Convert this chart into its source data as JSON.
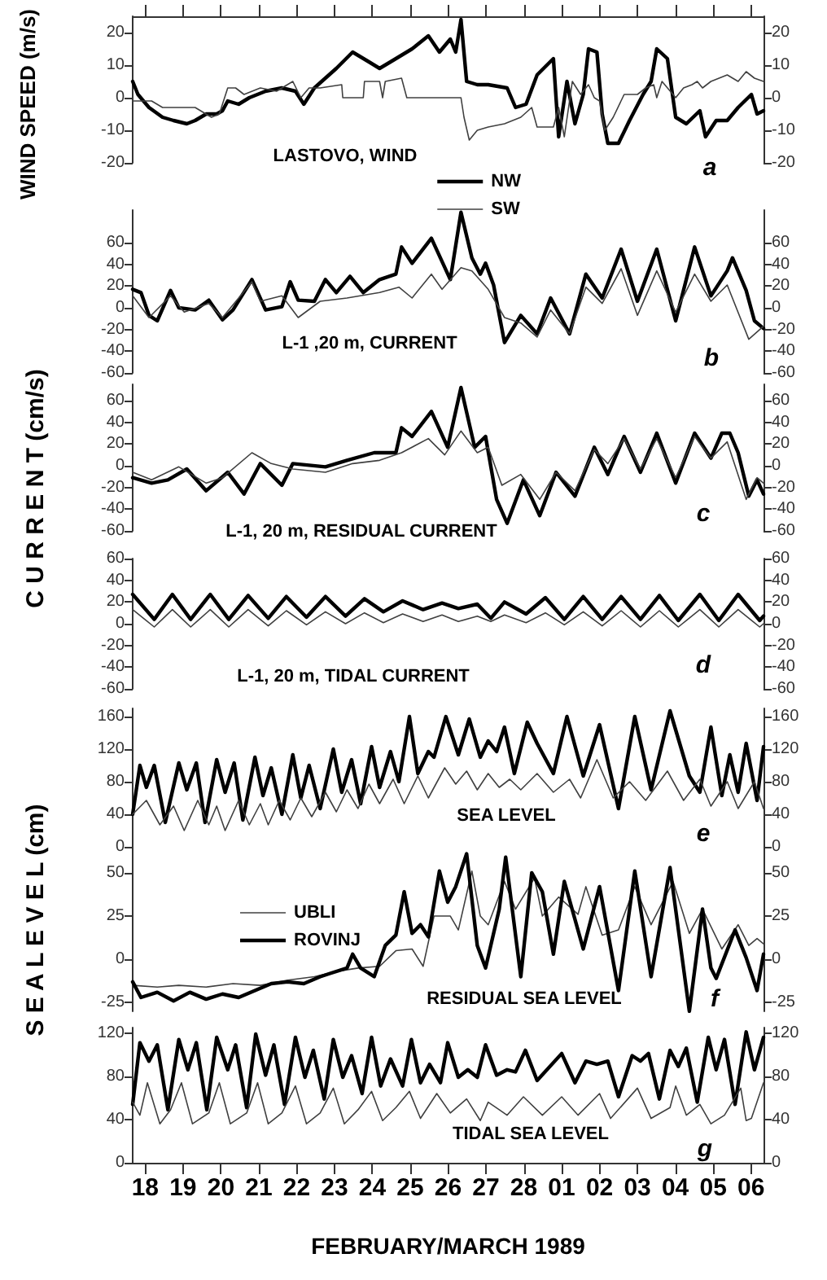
{
  "chart_data": [
    {
      "type": "line",
      "title": "LASTOVO, WIND",
      "annotations": [
        "a"
      ],
      "ylabel": "WIND SPEED  (m/s)",
      "legend": "bottom",
      "marker": "none",
      "tick_labels": "y",
      "xlim": [
        "1989-02-17T16:05",
        "1989-03-06T07:55"
      ],
      "xticks": [
        {
          "value": "1989-02-18",
          "label": null
        },
        {
          "value": "1989-02-19",
          "label": null
        },
        {
          "value": "1989-02-20",
          "label": null
        },
        {
          "value": "1989-02-21",
          "label": null
        },
        {
          "value": "1989-02-22",
          "label": null
        },
        {
          "value": "1989-02-23",
          "label": null
        },
        {
          "value": "1989-02-24",
          "label": null
        },
        {
          "value": "1989-02-25",
          "label": null
        },
        {
          "value": "1989-02-26",
          "label": null
        },
        {
          "value": "1989-02-27",
          "label": null
        },
        {
          "value": "1989-02-28",
          "label": null
        },
        {
          "value": "1989-03-01",
          "label": null
        },
        {
          "value": "1989-03-02",
          "label": null
        },
        {
          "value": "1989-03-03",
          "label": null
        },
        {
          "value": "1989-03-04",
          "label": null
        },
        {
          "value": "1989-03-05",
          "label": null
        },
        {
          "value": "1989-03-06",
          "label": null
        }
      ],
      "ylim": [
        -20,
        25
      ],
      "yticks": [
        -20,
        -10,
        0,
        10,
        20
      ],
      "y2lim": [
        -20,
        25
      ],
      "y2ticks": [
        -20,
        -10,
        0,
        10,
        20
      ],
      "series": [
        {
          "name": "NW",
          "color": "#000000",
          "x": [
            "1989-02-17T16:05",
            "1989-02-17T19:25",
            "1989-02-18T02:25",
            "1989-02-18T11:00",
            "1989-02-18T18:00",
            "1989-02-19T02:25",
            "1989-02-19T07:40",
            "1989-02-19T14:40",
            "1989-02-19T21:20",
            "1989-02-20T01:00",
            "1989-02-20T04:20",
            "1989-02-20T11:15",
            "1989-02-20T18:00",
            "1989-02-21T04:20",
            "1989-02-21T14:40",
            "1989-02-21T23:15",
            "1989-02-22T04:35",
            "1989-02-22T11:15",
            "1989-02-23T01:10",
            "1989-02-23T11:30",
            "1989-02-23T21:50",
            "1989-02-24T04:35",
            "1989-02-24T11:30",
            "1989-02-25T01:10",
            "1989-02-25T11:30",
            "1989-02-25T18:30",
            "1989-02-26T01:25",
            "1989-02-26T04:50",
            "1989-02-26T08:10",
            "1989-02-26T11:45",
            "1989-02-26T18:30",
            "1989-02-27T01:25",
            "1989-02-27T13:25",
            "1989-02-27T18:45",
            "1989-02-28T01:25",
            "1989-02-28T08:25",
            "1989-02-28T18:45",
            "1989-02-28T22:05",
            "1989-03-01T03:20",
            "1989-03-01T08:25",
            "1989-03-01T13:40",
            "1989-03-01T17:00",
            "1989-03-01T22:20",
            "1989-03-02T01:40",
            "1989-03-02T05:15",
            "1989-03-02T12:00",
            "1989-03-02T19:00",
            "1989-03-03T03:35",
            "1989-03-03T08:40",
            "1989-03-03T12:15",
            "1989-03-03T19:00",
            "1989-03-04T00:15",
            "1989-03-04T07:00",
            "1989-03-04T15:35",
            "1989-03-04T19:10",
            "1989-03-05T01:55",
            "1989-03-05T08:55",
            "1989-03-05T15:50",
            "1989-03-06T00:15",
            "1989-03-06T03:50",
            "1989-03-06T07:55"
          ],
          "values": [
            5,
            1,
            -3,
            -6,
            -7,
            -8,
            -7,
            -5,
            -5,
            -4,
            -1,
            -2,
            0,
            2,
            3,
            2,
            -2,
            3,
            9,
            14,
            11,
            9,
            11,
            15,
            19,
            14,
            18,
            14,
            24,
            5,
            4,
            4,
            3,
            -3,
            -2,
            7,
            12,
            -12,
            5,
            -8,
            1,
            15,
            14,
            -5,
            -14,
            -14,
            -7,
            1,
            5,
            15,
            12,
            -6,
            -8,
            -4,
            -12,
            -7,
            -7,
            -3,
            1,
            -5,
            -4
          ]
        },
        {
          "name": "SW",
          "color": "#404040",
          "x": [
            "1989-02-17T16:05",
            "1989-02-17T21:20",
            "1989-02-18T04:05",
            "1989-02-18T11:00",
            "1989-02-18T21:20",
            "1989-02-19T07:40",
            "1989-02-19T18:00",
            "1989-02-19T23:00",
            "1989-02-20T04:20",
            "1989-02-20T09:20",
            "1989-02-20T14:40",
            "1989-02-21T01:00",
            "1989-02-21T11:15",
            "1989-02-21T21:35",
            "1989-02-22T02:40",
            "1989-02-22T07:55",
            "1989-02-22T14:55",
            "1989-02-23T04:35",
            "1989-02-23T05:15",
            "1989-02-23T18:15",
            "1989-02-23T19:00",
            "1989-02-24T04:35",
            "1989-02-24T06:30",
            "1989-02-24T08:10",
            "1989-02-24T18:30",
            "1989-02-24T21:50",
            "1989-02-26T08:10",
            "1989-02-26T10:05",
            "1989-02-26T13:25",
            "1989-02-26T18:30",
            "1989-02-27T01:25",
            "1989-02-27T11:45",
            "1989-02-27T22:05",
            "1989-02-28T05:00",
            "1989-02-28T08:25",
            "1989-02-28T18:45",
            "1989-02-28T22:05",
            "1989-03-01T01:40",
            "1989-03-01T06:45",
            "1989-03-01T12:00",
            "1989-03-01T17:00",
            "1989-03-01T20:40",
            "1989-03-02T00:00",
            "1989-03-02T03:20",
            "1989-03-02T08:40",
            "1989-03-02T15:35",
            "1989-03-03T00:00",
            "1989-03-03T05:15",
            "1989-03-03T10:20",
            "1989-03-03T12:15",
            "1989-03-03T15:35",
            "1989-03-04T00:15",
            "1989-03-04T05:15",
            "1989-03-04T10:35",
            "1989-03-04T13:55",
            "1989-03-04T17:15",
            "1989-03-04T22:35",
            "1989-03-05T08:55",
            "1989-03-05T15:50",
            "1989-03-05T20:55",
            "1989-03-06T02:10",
            "1989-03-06T07:55"
          ],
          "values": [
            -1,
            -1,
            -1,
            -3,
            -3,
            -3,
            -6,
            -5,
            3,
            3,
            1,
            3,
            2,
            5,
            0,
            3,
            3,
            4,
            0,
            0,
            5,
            5,
            0,
            5,
            6,
            0,
            0,
            -6,
            -13,
            -10,
            -9,
            -8,
            -6,
            -3,
            -9,
            -9,
            -3,
            -12,
            5,
            1,
            4,
            0,
            -1,
            -10,
            -6,
            1,
            1,
            3,
            4,
            0,
            5,
            0,
            3,
            4,
            5,
            3,
            5,
            7,
            5,
            8,
            6,
            5
          ]
        }
      ]
    },
    {
      "type": "line",
      "title": "L-1 ,20 m, CURRENT",
      "annotations": [
        "b"
      ],
      "marker": "none",
      "tick_labels": "y",
      "xlim": [
        "1989-02-17T16:05",
        "1989-03-06T07:55"
      ],
      "ylim": [
        -60,
        90
      ],
      "yticks": [
        -60,
        -40,
        -20,
        0,
        20,
        40,
        60
      ],
      "y2lim": [
        -60,
        90
      ],
      "y2ticks": [
        -60,
        -40,
        -20,
        0,
        20,
        40,
        60
      ],
      "series": [
        {
          "color": "#000000",
          "x": [
            "1989-02-17T16:05",
            "1989-02-17T21:20",
            "1989-02-18T02:25",
            "1989-02-18T07:40",
            "1989-02-18T16:05",
            "1989-02-18T21:20",
            "1989-02-19T07:40",
            "1989-02-19T16:20",
            "1989-02-20T01:00",
            "1989-02-20T07:40",
            "1989-02-20T19:40",
            "1989-02-21T04:20",
            "1989-02-21T14:40",
            "1989-02-21T19:55",
            "1989-02-22T01:00",
            "1989-02-22T11:15",
            "1989-02-22T18:15",
            "1989-02-23T01:10",
            "1989-02-23T09:50",
            "1989-02-23T18:15",
            "1989-02-24T04:35",
            "1989-02-24T14:55",
            "1989-02-24T18:30",
            "1989-02-25T01:10",
            "1989-02-25T13:25",
            "1989-02-26T01:25",
            "1989-02-26T08:10",
            "1989-02-26T15:05",
            "1989-02-26T20:25",
            "1989-02-26T23:45",
            "1989-02-27T04:50",
            "1989-02-27T11:45",
            "1989-02-27T22:05",
            "1989-02-28T08:25",
            "1989-02-28T17:00",
            "1989-03-01T05:00",
            "1989-03-01T15:20",
            "1989-03-02T01:40",
            "1989-03-02T13:40",
            "1989-03-03T00:00",
            "1989-03-03T12:15",
            "1989-03-04T00:15",
            "1989-03-04T12:15",
            "1989-03-04T22:35",
            "1989-03-05T08:55",
            "1989-03-05T12:15",
            "1989-03-05T20:55",
            "1989-03-06T02:10",
            "1989-03-06T07:55"
          ],
          "values": [
            17,
            14,
            -7,
            -12,
            16,
            0,
            -2,
            7,
            -11,
            -2,
            26,
            -2,
            1,
            24,
            7,
            6,
            26,
            14,
            29,
            14,
            26,
            31,
            56,
            41,
            64,
            26,
            88,
            46,
            31,
            41,
            21,
            -32,
            -7,
            -24,
            9,
            -24,
            31,
            9,
            54,
            6,
            54,
            -12,
            56,
            11,
            34,
            46,
            16,
            -12,
            -19
          ]
        },
        {
          "color": "#404040",
          "x": [
            "1989-02-17T16:05",
            "1989-02-18T02:25",
            "1989-02-18T16:05",
            "1989-02-19T00:45",
            "1989-02-19T16:20",
            "1989-02-20T01:00",
            "1989-02-20T11:15",
            "1989-02-20T19:40",
            "1989-02-21T01:00",
            "1989-02-21T14:40",
            "1989-02-22T01:00",
            "1989-02-22T14:55",
            "1989-02-23T07:55",
            "1989-02-24T04:35",
            "1989-02-24T16:50",
            "1989-02-25T01:10",
            "1989-02-25T13:25",
            "1989-02-25T20:10",
            "1989-02-26T08:10",
            "1989-02-26T15:05",
            "1989-02-27T01:25",
            "1989-02-27T11:45",
            "1989-02-27T22:05",
            "1989-02-28T08:25",
            "1989-02-28T17:00",
            "1989-03-01T05:00",
            "1989-03-01T15:20",
            "1989-03-02T01:40",
            "1989-03-02T13:40",
            "1989-03-03T00:00",
            "1989-03-03T12:15",
            "1989-03-04T00:15",
            "1989-03-04T12:15",
            "1989-03-04T22:35",
            "1989-03-05T08:55",
            "1989-03-05T22:35",
            "1989-03-06T07:55"
          ],
          "values": [
            11,
            -9,
            11,
            -4,
            4,
            -9,
            9,
            24,
            6,
            11,
            -9,
            6,
            9,
            14,
            19,
            9,
            31,
            17,
            37,
            34,
            17,
            -9,
            -14,
            -27,
            -2,
            -24,
            19,
            4,
            36,
            -7,
            34,
            -4,
            31,
            6,
            21,
            -29,
            -17
          ]
        }
      ]
    },
    {
      "type": "line",
      "title": "L-1, 20 m, RESIDUAL CURRENT",
      "annotations": [
        "c"
      ],
      "ylabel": "C U R R E N T  (cm/s)",
      "marker": "none",
      "tick_labels": "y",
      "xlim": [
        "1989-02-17T16:05",
        "1989-03-06T07:55"
      ],
      "ylim": [
        -60,
        75
      ],
      "yticks": [
        -60,
        -40,
        -20,
        0,
        20,
        40,
        60
      ],
      "y2lim": [
        -60,
        75
      ],
      "y2ticks": [
        -60,
        -40,
        -20,
        0,
        20,
        40,
        60
      ],
      "series": [
        {
          "color": "#000000",
          "x": [
            "1989-02-17T16:05",
            "1989-02-18T04:05",
            "1989-02-18T14:25",
            "1989-02-19T02:25",
            "1989-02-19T14:40",
            "1989-02-20T04:20",
            "1989-02-20T14:40",
            "1989-02-21T01:00",
            "1989-02-21T14:40",
            "1989-02-21T21:35",
            "1989-02-22T18:15",
            "1989-02-23T07:55",
            "1989-02-24T01:10",
            "1989-02-24T14:55",
            "1989-02-24T18:30",
            "1989-02-25T01:10",
            "1989-02-25T13:25",
            "1989-02-25T23:45",
            "1989-02-26T08:10",
            "1989-02-26T16:50",
            "1989-02-26T23:45",
            "1989-02-27T06:45",
            "1989-02-27T13:25",
            "1989-02-27T23:45",
            "1989-02-28T10:05",
            "1989-02-28T20:25",
            "1989-03-01T08:25",
            "1989-03-01T20:40",
            "1989-03-02T05:15",
            "1989-03-02T15:35",
            "1989-03-03T01:55",
            "1989-03-03T12:15",
            "1989-03-04T00:15",
            "1989-03-04T12:15",
            "1989-03-04T22:35",
            "1989-03-05T05:30",
            "1989-03-05T10:35",
            "1989-03-05T15:50",
            "1989-03-05T22:35",
            "1989-03-06T03:50",
            "1989-03-06T07:55"
          ],
          "values": [
            -11,
            -16,
            -13,
            -3,
            -23,
            -6,
            -26,
            2,
            -18,
            2,
            -1,
            5,
            12,
            12,
            35,
            27,
            50,
            17,
            72,
            17,
            27,
            -31,
            -53,
            -13,
            -46,
            -6,
            -28,
            17,
            -8,
            27,
            -6,
            30,
            -16,
            30,
            7,
            30,
            30,
            12,
            -28,
            -13,
            -26
          ]
        },
        {
          "color": "#404040",
          "x": [
            "1989-02-17T16:05",
            "1989-02-18T04:05",
            "1989-02-18T21:20",
            "1989-02-19T14:40",
            "1989-02-20T01:00",
            "1989-02-20T19:40",
            "1989-02-21T07:55",
            "1989-02-21T21:35",
            "1989-02-22T18:15",
            "1989-02-23T11:30",
            "1989-02-24T04:35",
            "1989-02-24T18:30",
            "1989-02-25T11:30",
            "1989-02-25T21:50",
            "1989-02-26T08:10",
            "1989-02-26T18:30",
            "1989-02-27T01:25",
            "1989-02-27T10:05",
            "1989-02-27T22:05",
            "1989-02-28T10:05",
            "1989-02-28T20:25",
            "1989-03-01T08:25",
            "1989-03-01T20:40",
            "1989-03-02T05:15",
            "1989-03-02T15:35",
            "1989-03-03T01:55",
            "1989-03-03T12:15",
            "1989-03-04T00:15",
            "1989-03-04T12:15",
            "1989-03-04T22:35",
            "1989-03-05T08:55",
            "1989-03-05T20:55",
            "1989-03-06T03:50",
            "1989-03-06T07:55"
          ],
          "values": [
            -6,
            -13,
            -1,
            -16,
            -11,
            12,
            2,
            -3,
            -6,
            2,
            5,
            12,
            25,
            10,
            32,
            12,
            17,
            -18,
            -8,
            -31,
            -6,
            -23,
            15,
            2,
            25,
            -3,
            25,
            -11,
            27,
            7,
            22,
            -31,
            -11,
            -16
          ]
        }
      ]
    },
    {
      "type": "line",
      "title": "L-1, 20 m, TIDAL CURRENT",
      "annotations": [
        "d"
      ],
      "marker": "none",
      "tick_labels": "y",
      "xlim": [
        "1989-02-17T16:05",
        "1989-03-06T07:55"
      ],
      "ylim": [
        -60,
        60
      ],
      "yticks": [
        -60,
        -40,
        -20,
        0,
        20,
        40,
        60
      ],
      "y2lim": [
        -60,
        60
      ],
      "y2ticks": [
        -60,
        -40,
        -20,
        0,
        20,
        40,
        60
      ],
      "x": [
        "1989-02-17T16:05",
        "1989-02-18T05:45",
        "1989-02-18T17:15",
        "1989-02-19T04:50",
        "1989-02-19T17:15",
        "1989-02-20T05:00",
        "1989-02-20T17:15",
        "1989-02-21T06:00",
        "1989-02-21T17:30",
        "1989-02-22T06:15",
        "1989-02-22T18:15",
        "1989-02-23T07:00",
        "1989-02-23T19:00",
        "1989-02-24T07:00",
        "1989-02-24T19:10",
        "1989-02-25T08:10",
        "1989-02-25T20:10",
        "1989-02-26T06:30",
        "1989-02-26T18:30",
        "1989-02-27T03:05",
        "1989-02-27T11:45",
        "1989-02-28T01:25",
        "1989-02-28T13:40",
        "1989-03-01T01:40",
        "1989-03-01T13:40",
        "1989-03-02T01:40",
        "1989-03-02T13:40",
        "1989-03-03T01:55",
        "1989-03-03T13:55",
        "1989-03-04T01:55",
        "1989-03-04T15:35",
        "1989-03-05T03:35",
        "1989-03-05T15:50",
        "1989-03-06T05:30",
        "1989-03-06T07:55"
      ],
      "series": [
        {
          "color": "#000000",
          "values": [
            27,
            4,
            27,
            4,
            27,
            4,
            26,
            5,
            25,
            6,
            25,
            7,
            23,
            11,
            21,
            13,
            19,
            14,
            18,
            5,
            20,
            9,
            24,
            4,
            25,
            4,
            25,
            4,
            26,
            3,
            27,
            3,
            27,
            3,
            7
          ]
        },
        {
          "color": "#404040",
          "values": [
            13,
            -3,
            13,
            -3,
            13,
            -3,
            13,
            -2,
            12,
            -1,
            11,
            0,
            10,
            1,
            9,
            2,
            8,
            2,
            7,
            2,
            8,
            1,
            10,
            -1,
            11,
            -2,
            12,
            -3,
            12,
            -3,
            13,
            -3,
            13,
            -3,
            0
          ]
        }
      ]
    },
    {
      "type": "line",
      "title": "SEA LEVEL",
      "annotations": [
        "e"
      ],
      "marker": "none",
      "tick_labels": "y",
      "xlim": [
        "1989-02-17T16:05",
        "1989-03-06T07:55"
      ],
      "ylim": [
        0,
        170
      ],
      "yticks": [
        0,
        40,
        80,
        120,
        160
      ],
      "y2lim": [
        0,
        170
      ],
      "y2ticks": [
        0,
        40,
        80,
        120,
        160
      ],
      "series": [
        {
          "color": "#000000",
          "x": [
            "1989-02-17T16:05",
            "1989-02-17T20:40",
            "1989-02-18T00:45",
            "1989-02-18T05:45",
            "1989-02-18T12:45",
            "1989-02-18T21:20",
            "1989-02-19T02:25",
            "1989-02-19T08:25",
            "1989-02-19T13:55",
            "1989-02-19T21:20",
            "1989-02-20T02:40",
            "1989-02-20T08:25",
            "1989-02-20T13:55",
            "1989-02-20T21:35",
            "1989-02-21T02:40",
            "1989-02-21T07:55",
            "1989-02-21T14:40",
            "1989-02-21T21:35",
            "1989-02-22T02:40",
            "1989-02-22T07:55",
            "1989-02-22T14:55",
            "1989-02-22T23:15",
            "1989-02-23T04:35",
            "1989-02-23T10:50",
            "1989-02-23T16:35",
            "1989-02-23T23:30",
            "1989-02-24T04:35",
            "1989-02-24T11:30",
            "1989-02-24T16:50",
            "1989-02-24T23:30",
            "1989-02-25T04:50",
            "1989-02-25T11:30",
            "1989-02-25T15:05",
            "1989-02-25T22:35",
            "1989-02-26T06:30",
            "1989-02-26T13:25",
            "1989-02-26T20:25",
            "1989-02-27T01:25",
            "1989-02-27T06:45",
            "1989-02-27T11:45",
            "1989-02-27T18:00",
            "1989-02-28T02:10",
            "1989-02-28T08:25",
            "1989-02-28T18:45",
            "1989-03-01T03:20",
            "1989-03-01T13:40",
            "1989-03-02T00:00",
            "1989-03-02T12:00",
            "1989-03-02T22:20",
            "1989-03-03T08:40",
            "1989-03-03T20:40",
            "1989-03-04T08:55",
            "1989-03-04T15:35",
            "1989-03-04T22:35",
            "1989-03-05T05:30",
            "1989-03-05T10:35",
            "1989-03-05T15:50",
            "1989-03-05T20:55",
            "1989-03-06T03:50",
            "1989-03-06T07:55"
          ],
          "values": [
            40,
            100,
            73,
            100,
            30,
            103,
            70,
            103,
            30,
            107,
            67,
            103,
            33,
            110,
            63,
            97,
            40,
            113,
            60,
            100,
            47,
            120,
            67,
            107,
            53,
            123,
            73,
            117,
            80,
            160,
            90,
            117,
            110,
            160,
            113,
            157,
            110,
            130,
            117,
            147,
            90,
            153,
            127,
            90,
            160,
            87,
            150,
            47,
            160,
            70,
            167,
            87,
            67,
            147,
            63,
            113,
            67,
            127,
            57,
            123
          ]
        },
        {
          "color": "#404040",
          "x": [
            "1989-02-17T16:05",
            "1989-02-18T00:45",
            "1989-02-18T09:20",
            "1989-02-18T18:00",
            "1989-02-19T00:45",
            "1989-02-19T09:20",
            "1989-02-19T16:20",
            "1989-02-19T21:20",
            "1989-02-20T02:40",
            "1989-02-20T11:15",
            "1989-02-20T18:00",
            "1989-02-21T01:00",
            "1989-02-21T06:00",
            "1989-02-21T13:00",
            "1989-02-21T19:55",
            "1989-02-22T02:40",
            "1989-02-22T09:35",
            "1989-02-22T18:15",
            "1989-02-23T01:10",
            "1989-02-23T07:55",
            "1989-02-23T14:55",
            "1989-02-23T21:50",
            "1989-02-24T04:35",
            "1989-02-24T13:10",
            "1989-02-24T20:10",
            "1989-02-25T04:50",
            "1989-02-25T11:30",
            "1989-02-25T21:50",
            "1989-02-26T04:50",
            "1989-02-26T11:45",
            "1989-02-26T18:30",
            "1989-02-27T01:25",
            "1989-02-27T08:25",
            "1989-02-27T15:05",
            "1989-02-27T22:05",
            "1989-02-28T08:25",
            "1989-02-28T18:45",
            "1989-03-01T05:00",
            "1989-03-01T12:00",
            "1989-03-01T22:20",
            "1989-03-02T08:40",
            "1989-03-02T19:00",
            "1989-03-03T05:15",
            "1989-03-03T19:00",
            "1989-03-04T05:15",
            "1989-03-04T15:35",
            "1989-03-04T22:35",
            "1989-03-05T08:55",
            "1989-03-05T15:50",
            "1989-03-06T02:10",
            "1989-03-06T07:55"
          ],
          "values": [
            40,
            57,
            27,
            50,
            20,
            57,
            27,
            50,
            20,
            57,
            27,
            53,
            27,
            57,
            33,
            60,
            37,
            67,
            43,
            70,
            47,
            77,
            53,
            83,
            53,
            87,
            60,
            97,
            77,
            93,
            70,
            90,
            73,
            83,
            70,
            90,
            67,
            83,
            60,
            107,
            60,
            80,
            57,
            93,
            57,
            83,
            50,
            80,
            47,
            80,
            47
          ]
        }
      ]
    },
    {
      "type": "line",
      "title": "RESIDUAL SEA LEVEL",
      "annotations": [
        "f"
      ],
      "ylabel": "S E A   L E V E L  (cm)",
      "legend": "top left",
      "marker": "none",
      "tick_labels": "y",
      "xlim": [
        "1989-02-17T16:05",
        "1989-03-06T07:55"
      ],
      "ylim": [
        -30,
        65
      ],
      "yticks": [
        -25,
        0,
        25,
        50
      ],
      "y2lim": [
        -30,
        65
      ],
      "y2ticks": [
        -25,
        0,
        25,
        50
      ],
      "series": [
        {
          "name": "UBLI",
          "color": "#404040",
          "x": [
            "1989-02-17T16:05",
            "1989-02-18T07:40",
            "1989-02-18T21:20",
            "1989-02-19T14:40",
            "1989-02-20T07:40",
            "1989-02-21T01:00",
            "1989-02-21T18:15",
            "1989-02-22T11:15",
            "1989-02-23T01:10",
            "1989-02-23T14:55",
            "1989-02-24T04:35",
            "1989-02-24T14:55",
            "1989-02-25T01:10",
            "1989-02-25T08:10",
            "1989-02-25T15:05",
            "1989-02-26T01:25",
            "1989-02-26T06:30",
            "1989-02-26T15:05",
            "1989-02-26T20:25",
            "1989-02-27T01:25",
            "1989-02-27T11:45",
            "1989-02-27T18:45",
            "1989-02-28T06:45",
            "1989-02-28T11:45",
            "1989-02-28T22:05",
            "1989-03-01T10:20",
            "1989-03-01T15:20",
            "1989-03-02T01:40",
            "1989-03-02T12:00",
            "1989-03-02T22:20",
            "1989-03-03T08:40",
            "1989-03-03T22:35",
            "1989-03-04T08:55",
            "1989-03-04T17:15",
            "1989-03-05T05:30",
            "1989-03-05T15:50",
            "1989-03-05T22:35",
            "1989-03-06T03:50",
            "1989-03-06T07:55"
          ],
          "values": [
            -15,
            -16,
            -15,
            -16,
            -14,
            -15,
            -12,
            -10,
            -7,
            -5,
            -4,
            5,
            6,
            -4,
            25,
            25,
            17,
            51,
            25,
            20,
            45,
            29,
            47,
            25,
            36,
            26,
            42,
            14,
            17,
            42,
            20,
            45,
            15,
            29,
            6,
            20,
            8,
            12,
            9
          ]
        },
        {
          "name": "ROVINJ",
          "color": "#000000",
          "x": [
            "1989-02-17T16:05",
            "1989-02-17T21:20",
            "1989-02-18T07:40",
            "1989-02-18T18:00",
            "1989-02-19T04:20",
            "1989-02-19T14:40",
            "1989-02-20T01:00",
            "1989-02-20T11:15",
            "1989-02-20T21:35",
            "1989-02-21T07:55",
            "1989-02-21T18:15",
            "1989-02-22T04:35",
            "1989-02-22T14:55",
            "1989-02-22T21:35",
            "1989-02-23T07:55",
            "1989-02-23T11:30",
            "1989-02-23T16:35",
            "1989-02-24T01:10",
            "1989-02-24T08:10",
            "1989-02-24T14:55",
            "1989-02-24T20:10",
            "1989-02-25T01:10",
            "1989-02-25T06:30",
            "1989-02-25T11:30",
            "1989-02-25T18:30",
            "1989-02-25T23:45",
            "1989-02-26T04:50",
            "1989-02-26T11:45",
            "1989-02-26T18:30",
            "1989-02-26T23:45",
            "1989-02-27T08:25",
            "1989-02-27T12:30",
            "1989-02-27T22:05",
            "1989-02-28T05:00",
            "1989-02-28T11:45",
            "1989-02-28T18:45",
            "1989-03-01T01:40",
            "1989-03-01T13:40",
            "1989-03-02T00:00",
            "1989-03-02T12:00",
            "1989-03-02T22:20",
            "1989-03-03T08:40",
            "1989-03-03T20:40",
            "1989-03-04T08:55",
            "1989-03-04T17:15",
            "1989-03-04T22:35",
            "1989-03-05T01:55",
            "1989-03-05T13:55",
            "1989-03-05T20:55",
            "1989-03-06T03:50",
            "1989-03-06T07:55"
          ],
          "values": [
            -13,
            -22,
            -19,
            -24,
            -19,
            -23,
            -20,
            -22,
            -18,
            -14,
            -13,
            -14,
            -10,
            -8,
            -5,
            3,
            -5,
            -10,
            8,
            14,
            39,
            15,
            20,
            13,
            51,
            33,
            42,
            61,
            8,
            -5,
            29,
            59,
            -10,
            50,
            39,
            3,
            45,
            6,
            42,
            -18,
            51,
            -10,
            53,
            -30,
            29,
            -5,
            -11,
            17,
            1,
            -18,
            3
          ]
        }
      ]
    },
    {
      "type": "line",
      "title": "TIDAL SEA LEVEL",
      "annotations": [
        "g"
      ],
      "xlabel": "FEBRUARY/MARCH 1989",
      "marker": "none",
      "xlim": [
        "1989-02-17T16:05",
        "1989-03-06T07:55"
      ],
      "xticks": [
        {
          "value": "1989-02-18",
          "label": "18"
        },
        {
          "value": "1989-02-19",
          "label": "19"
        },
        {
          "value": "1989-02-20",
          "label": "20"
        },
        {
          "value": "1989-02-21",
          "label": "21"
        },
        {
          "value": "1989-02-22",
          "label": "22"
        },
        {
          "value": "1989-02-23",
          "label": "23"
        },
        {
          "value": "1989-02-24",
          "label": "24"
        },
        {
          "value": "1989-02-25",
          "label": "25"
        },
        {
          "value": "1989-02-26",
          "label": "26"
        },
        {
          "value": "1989-02-27",
          "label": "27"
        },
        {
          "value": "1989-02-28",
          "label": "28"
        },
        {
          "value": "1989-03-01",
          "label": "01"
        },
        {
          "value": "1989-03-02",
          "label": "02"
        },
        {
          "value": "1989-03-03",
          "label": "03"
        },
        {
          "value": "1989-03-04",
          "label": "04"
        },
        {
          "value": "1989-03-05",
          "label": "05"
        },
        {
          "value": "1989-03-06",
          "label": "06"
        }
      ],
      "ylim": [
        0,
        125
      ],
      "yticks": [
        0,
        40,
        80,
        120
      ],
      "y2lim": [
        0,
        125
      ],
      "y2ticks": [
        0,
        40,
        80,
        120
      ],
      "series": [
        {
          "color": "#000000",
          "x": [
            "1989-02-17T16:05",
            "1989-02-17T20:40",
            "1989-02-18T02:25",
            "1989-02-18T07:40",
            "1989-02-18T14:25",
            "1989-02-18T21:20",
            "1989-02-19T03:05",
            "1989-02-19T08:25",
            "1989-02-19T15:05",
            "1989-02-19T21:20",
            "1989-02-20T04:20",
            "1989-02-20T09:20",
            "1989-02-20T16:20",
            "1989-02-20T22:05",
            "1989-02-21T04:20",
            "1989-02-21T09:35",
            "1989-02-21T16:20",
            "1989-02-21T23:15",
            "1989-02-22T05:15",
            "1989-02-22T10:35",
            "1989-02-22T17:30",
            "1989-02-22T23:15",
            "1989-02-23T05:15",
            "1989-02-23T10:50",
            "1989-02-23T17:30",
            "1989-02-23T23:30",
            "1989-02-24T05:15",
            "1989-02-24T11:30",
            "1989-02-24T19:10",
            "1989-02-25T00:45",
            "1989-02-25T06:30",
            "1989-02-25T12:15",
            "1989-02-25T19:10",
            "1989-02-25T23:45",
            "1989-02-26T06:30",
            "1989-02-26T12:30",
            "1989-02-26T18:30",
            "1989-02-26T23:45",
            "1989-02-27T06:45",
            "1989-02-27T13:25",
            "1989-02-27T18:45",
            "1989-02-28T01:00",
            "1989-02-28T08:25",
            "1989-03-01T00:00",
            "1989-03-01T08:25",
            "1989-03-01T15:20",
            "1989-03-01T22:20",
            "1989-03-02T05:15",
            "1989-03-02T12:00",
            "1989-03-02T20:40",
            "1989-03-03T01:55",
            "1989-03-03T07:00",
            "1989-03-03T13:55",
            "1989-03-03T20:40",
            "1989-03-04T01:55",
            "1989-03-04T07:00",
            "1989-03-04T13:55",
            "1989-03-04T20:55",
            "1989-03-05T01:55",
            "1989-03-05T07:10",
            "1989-03-05T13:55",
            "1989-03-05T20:55",
            "1989-03-06T02:10",
            "1989-03-06T07:55"
          ],
          "values": [
            54,
            111,
            94,
            109,
            49,
            114,
            86,
            111,
            49,
            116,
            86,
            109,
            51,
            119,
            81,
            109,
            54,
            116,
            79,
            104,
            59,
            114,
            79,
            99,
            64,
            116,
            71,
            96,
            71,
            114,
            74,
            91,
            74,
            111,
            79,
            86,
            79,
            109,
            81,
            86,
            84,
            104,
            76,
            101,
            74,
            94,
            91,
            94,
            61,
            99,
            94,
            101,
            59,
            104,
            89,
            106,
            56,
            116,
            86,
            114,
            54,
            121,
            86,
            116
          ]
        },
        {
          "color": "#404040",
          "x": [
            "1989-02-17T16:05",
            "1989-02-17T20:40",
            "1989-02-18T01:25",
            "1989-02-18T09:20",
            "1989-02-18T16:05",
            "1989-02-18T23:00",
            "1989-02-19T06:00",
            "1989-02-19T16:20",
            "1989-02-19T23:00",
            "1989-02-20T06:00",
            "1989-02-20T16:20",
            "1989-02-20T23:15",
            "1989-02-21T06:00",
            "1989-02-21T14:40",
            "1989-02-21T23:15",
            "1989-02-22T06:15",
            "1989-02-22T14:55",
            "1989-02-22T23:15",
            "1989-02-23T06:15",
            "1989-02-23T14:55",
            "1989-02-23T23:30",
            "1989-02-24T06:30",
            "1989-02-24T14:55",
            "1989-02-24T23:30",
            "1989-02-25T06:30",
            "1989-02-25T16:50",
            "1989-02-26T01:25",
            "1989-02-26T11:45",
            "1989-02-26T20:25",
            "1989-02-27T01:25",
            "1989-02-27T08:25",
            "1989-02-27T13:25",
            "1989-02-27T23:45",
            "1989-02-28T11:45",
            "1989-03-01T00:00",
            "1989-03-01T10:20",
            "1989-03-02T00:00",
            "1989-03-02T07:00",
            "1989-03-03T00:00",
            "1989-03-03T08:40",
            "1989-03-03T20:40",
            "1989-03-04T00:15",
            "1989-03-04T07:00",
            "1989-03-04T15:35",
            "1989-03-04T22:35",
            "1989-03-05T07:10",
            "1989-03-05T17:30",
            "1989-03-05T20:55",
            "1989-03-06T00:15",
            "1989-03-06T07:55"
          ],
          "values": [
            56,
            44,
            74,
            36,
            49,
            74,
            36,
            46,
            74,
            36,
            46,
            74,
            36,
            46,
            71,
            36,
            46,
            69,
            36,
            49,
            66,
            39,
            51,
            66,
            41,
            64,
            46,
            59,
            39,
            56,
            49,
            44,
            61,
            44,
            61,
            44,
            64,
            41,
            69,
            41,
            51,
            71,
            44,
            54,
            36,
            44,
            69,
            39,
            41,
            74
          ]
        }
      ]
    }
  ]
}
